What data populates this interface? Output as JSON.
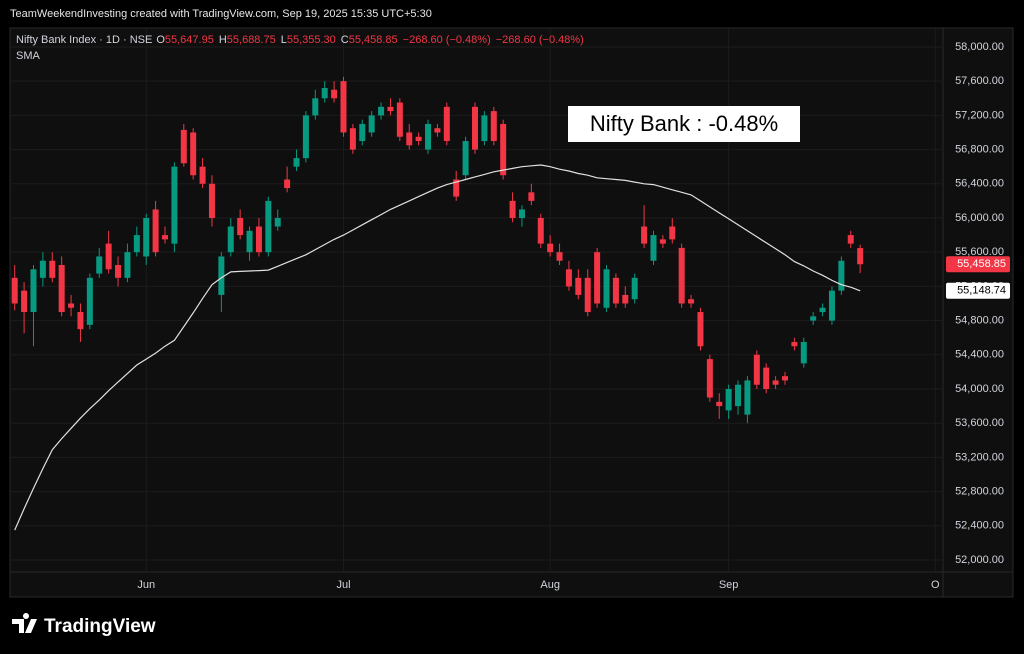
{
  "chart_data": {
    "type": "candlestick",
    "watermark": "TeamWeekendInvesting created with TradingView.com, Sep 19, 2025 15:35 UTC+5:30",
    "symbol": "Nifty Bank Index · 1D · NSE",
    "legend_values": [
      {
        "key": "O",
        "text": "55,647.95"
      },
      {
        "key": "H",
        "text": "55,688.75"
      },
      {
        "key": "L",
        "text": "55,355.30"
      },
      {
        "key": "C",
        "text": "55,458.85"
      }
    ],
    "change_texts": [
      "−268.60 (−0.48%)",
      "−268.60 (−0.48%)"
    ],
    "indicator": "SMA",
    "annotation": "Nifty Bank : -0.48%",
    "logo": "TradingView",
    "up_color": "#089981",
    "down_color": "#f23645",
    "sma_color": "#e0e0e0",
    "ylim": [
      51883,
      58105
    ],
    "yticks": [
      {
        "value": 52000,
        "label": "52,000.00"
      },
      {
        "value": 52400,
        "label": "52,400.00"
      },
      {
        "value": 52800,
        "label": "52,800.00"
      },
      {
        "value": 53200,
        "label": "53,200.00"
      },
      {
        "value": 53600,
        "label": "53,600.00"
      },
      {
        "value": 54000,
        "label": "54,000.00"
      },
      {
        "value": 54400,
        "label": "54,400.00"
      },
      {
        "value": 54800,
        "label": "54,800.00"
      },
      {
        "value": 55200,
        "label": "55,200.00"
      },
      {
        "value": 55600,
        "label": "55,600.00"
      },
      {
        "value": 56000,
        "label": "56,000.00"
      },
      {
        "value": 56400,
        "label": "56,400.00"
      },
      {
        "value": 56800,
        "label": "56,800.00"
      },
      {
        "value": 57200,
        "label": "57,200.00"
      },
      {
        "value": 57600,
        "label": "57,600.00"
      },
      {
        "value": 58000,
        "label": "58,000.00"
      }
    ],
    "xlim": [
      -0.5,
      98.5
    ],
    "xticks": [
      {
        "value": 14,
        "label": "Jun"
      },
      {
        "value": 35,
        "label": "Jul"
      },
      {
        "value": 57,
        "label": "Aug"
      },
      {
        "value": 76,
        "label": "Sep"
      },
      {
        "value": 98,
        "label": "O"
      }
    ],
    "grid": true,
    "last_price_label": "55,458.85",
    "sma_price_label": "55,148.74",
    "ohlc": [
      [
        55300,
        55450,
        54920,
        55000
      ],
      [
        55150,
        55250,
        54650,
        54900
      ],
      [
        54900,
        55450,
        54500,
        55400
      ],
      [
        55300,
        55600,
        55200,
        55500
      ],
      [
        55500,
        55600,
        55250,
        55300
      ],
      [
        55450,
        55550,
        54850,
        54900
      ],
      [
        55000,
        55100,
        54850,
        54950
      ],
      [
        54900,
        55000,
        54550,
        54700
      ],
      [
        54750,
        55350,
        54700,
        55300
      ],
      [
        55350,
        55650,
        55300,
        55550
      ],
      [
        55700,
        55850,
        55350,
        55400
      ],
      [
        55450,
        55550,
        55200,
        55300
      ],
      [
        55300,
        55700,
        55250,
        55600
      ],
      [
        55600,
        55900,
        55550,
        55800
      ],
      [
        55550,
        56050,
        55450,
        56000
      ],
      [
        56100,
        56200,
        55550,
        55600
      ],
      [
        55800,
        55900,
        55700,
        55750
      ],
      [
        55700,
        56650,
        55600,
        56600
      ],
      [
        57030,
        57100,
        56600,
        56640
      ],
      [
        57000,
        57050,
        56450,
        56500
      ],
      [
        56600,
        56700,
        56350,
        56400
      ],
      [
        56400,
        56500,
        55900,
        56000
      ],
      [
        55100,
        55600,
        54900,
        55550
      ],
      [
        55600,
        56000,
        55550,
        55900
      ],
      [
        56000,
        56100,
        55750,
        55800
      ],
      [
        55600,
        55900,
        55500,
        55850
      ],
      [
        55900,
        56000,
        55550,
        55600
      ],
      [
        55600,
        56250,
        55550,
        56200
      ],
      [
        55900,
        56100,
        55850,
        56000
      ],
      [
        56450,
        56600,
        56300,
        56350
      ],
      [
        56600,
        56800,
        56550,
        56700
      ],
      [
        56700,
        57250,
        56650,
        57200
      ],
      [
        57200,
        57500,
        57150,
        57400
      ],
      [
        57400,
        57600,
        57350,
        57520
      ],
      [
        57500,
        57600,
        57350,
        57400
      ],
      [
        57600,
        57650,
        56950,
        57000
      ],
      [
        57050,
        57100,
        56750,
        56800
      ],
      [
        56900,
        57150,
        56850,
        57100
      ],
      [
        57000,
        57250,
        56950,
        57200
      ],
      [
        57200,
        57350,
        57150,
        57300
      ],
      [
        57300,
        57400,
        57200,
        57250
      ],
      [
        57350,
        57400,
        56900,
        56950
      ],
      [
        57000,
        57100,
        56800,
        56850
      ],
      [
        56950,
        57000,
        56850,
        56900
      ],
      [
        56800,
        57150,
        56750,
        57100
      ],
      [
        57050,
        57100,
        56950,
        57000
      ],
      [
        57300,
        57350,
        56850,
        56900
      ],
      [
        56450,
        56550,
        56200,
        56250
      ],
      [
        56500,
        56950,
        56450,
        56900
      ],
      [
        57300,
        57350,
        56750,
        56800
      ],
      [
        56900,
        57250,
        56850,
        57200
      ],
      [
        57250,
        57300,
        56850,
        56900
      ],
      [
        57100,
        57150,
        56450,
        56500
      ],
      [
        56200,
        56300,
        55950,
        56000
      ],
      [
        56000,
        56150,
        55900,
        56100
      ],
      [
        56300,
        56400,
        56150,
        56200
      ],
      [
        56000,
        56050,
        55650,
        55700
      ],
      [
        55700,
        55800,
        55550,
        55600
      ],
      [
        55600,
        55700,
        55450,
        55500
      ],
      [
        55400,
        55500,
        55150,
        55200
      ],
      [
        55300,
        55400,
        55050,
        55100
      ],
      [
        55300,
        55400,
        54850,
        54900
      ],
      [
        55600,
        55650,
        54950,
        55000
      ],
      [
        54950,
        55450,
        54900,
        55400
      ],
      [
        55300,
        55350,
        54950,
        55000
      ],
      [
        55100,
        55200,
        54950,
        55000
      ],
      [
        55050,
        55350,
        55000,
        55300
      ],
      [
        55900,
        56150,
        55650,
        55700
      ],
      [
        55500,
        55850,
        55450,
        55800
      ],
      [
        55750,
        55800,
        55650,
        55700
      ],
      [
        55900,
        56000,
        55700,
        55750
      ],
      [
        55650,
        55700,
        54950,
        55000
      ],
      [
        55050,
        55100,
        54950,
        55000
      ],
      [
        54900,
        54950,
        54450,
        54500
      ],
      [
        54350,
        54400,
        53850,
        53900
      ],
      [
        53850,
        53950,
        53650,
        53800
      ],
      [
        53750,
        54050,
        53650,
        54000
      ],
      [
        53800,
        54100,
        53700,
        54050
      ],
      [
        53700,
        54150,
        53600,
        54100
      ],
      [
        54400,
        54450,
        54000,
        54050
      ],
      [
        54250,
        54300,
        53950,
        54000
      ],
      [
        54100,
        54150,
        54000,
        54050
      ],
      [
        54150,
        54200,
        54050,
        54100
      ],
      [
        54550,
        54600,
        54450,
        54500
      ],
      [
        54300,
        54600,
        54250,
        54550
      ],
      [
        54800,
        54900,
        54750,
        54850
      ],
      [
        54900,
        55000,
        54850,
        54950
      ],
      [
        54800,
        55200,
        54750,
        55150
      ],
      [
        55150,
        55550,
        55100,
        55500
      ],
      [
        55800,
        55850,
        55650,
        55700
      ],
      [
        55647.95,
        55688.75,
        55355.3,
        55458.85
      ]
    ],
    "sma": [
      52350,
      52600,
      52840,
      53070,
      53290,
      53420,
      53540,
      53660,
      53770,
      53870,
      53980,
      54080,
      54180,
      54280,
      54350,
      54420,
      54500,
      54570,
      54730,
      54890,
      55060,
      55220,
      55300,
      55370,
      55375,
      55380,
      55385,
      55390,
      55435,
      55480,
      55525,
      55570,
      55630,
      55690,
      55750,
      55800,
      55860,
      55920,
      55980,
      56040,
      56100,
      56150,
      56200,
      56250,
      56300,
      56350,
      56390,
      56420,
      56450,
      56480,
      56510,
      56540,
      56560,
      56580,
      56600,
      56610,
      56620,
      56600,
      56570,
      56550,
      56520,
      56500,
      56470,
      56460,
      56450,
      56440,
      56420,
      56400,
      56390,
      56360,
      56330,
      56300,
      56270,
      56200,
      56130,
      56060,
      55990,
      55920,
      55850,
      55780,
      55710,
      55640,
      55570,
      55490,
      55440,
      55380,
      55330,
      55270,
      55220,
      55190,
      55148.74
    ]
  }
}
